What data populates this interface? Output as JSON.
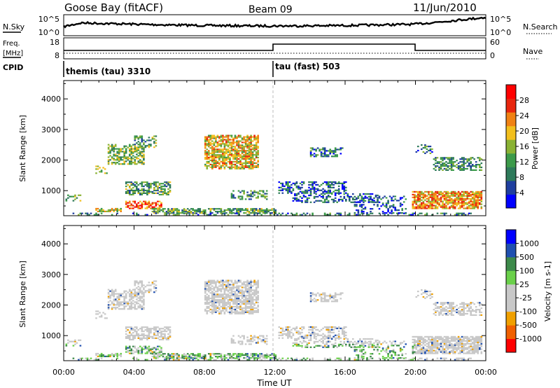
{
  "header": {
    "title": "Goose Bay (fitACF)",
    "beam": "Beam 09",
    "date": "11/Jun/2010"
  },
  "nsky_panel": {
    "left_label": "N.Sky",
    "left_ticks": [
      "10^5",
      "10^0"
    ],
    "right_ticks": [
      "10^5",
      "10^0"
    ],
    "right_label": "N.Search"
  },
  "freq_panel": {
    "left_label_1": "Freq.",
    "left_label_2": "[MHz]",
    "left_ticks": [
      "18",
      "8"
    ],
    "right_ticks": [
      "60",
      "0"
    ],
    "right_label": "Nave"
  },
  "cpid": {
    "label": "CPID",
    "segments": [
      {
        "name": "themis (tau) 3310",
        "start_hour": 0
      },
      {
        "name": "tau (fast) 503",
        "start_hour": 12
      }
    ]
  },
  "chart_data": [
    {
      "type": "heatmap",
      "ylabel": "Slant Range [km]",
      "xlim": [
        0,
        24
      ],
      "ylim": [
        180,
        4600
      ],
      "y_ticks": [
        1000,
        2000,
        3000,
        4000
      ],
      "colorbar": {
        "label": "Power [dB]",
        "range": [
          0,
          32
        ],
        "ticks": [
          4,
          8,
          12,
          16,
          20,
          24,
          28
        ],
        "colors": [
          "#0000ff",
          "#1f3f9f",
          "#2e7a5a",
          "#3c9a4a",
          "#8ab234",
          "#f2bf1d",
          "#f08214",
          "#e8260e",
          "#ff0000"
        ]
      }
    },
    {
      "type": "heatmap",
      "xlabel": "Time UT",
      "ylabel": "Slant Range [km]",
      "xlim": [
        0,
        24
      ],
      "ylim": [
        180,
        4600
      ],
      "x_ticks": [
        "00:00",
        "04:00",
        "08:00",
        "12:00",
        "16:00",
        "20:00",
        "00:00"
      ],
      "y_ticks": [
        1000,
        2000,
        3000,
        4000
      ],
      "colorbar": {
        "label": "Velocity [m s-1]",
        "ticks": [
          "1000",
          "500",
          "100",
          "25",
          "-25",
          "-100",
          "-500",
          "-1000"
        ],
        "colors": [
          "#0000ff",
          "#2050b0",
          "#3d8a4a",
          "#6ad04a",
          "#c8c8c8",
          "#c8c8c8",
          "#f0a000",
          "#f06000",
          "#ff0000"
        ]
      }
    }
  ]
}
